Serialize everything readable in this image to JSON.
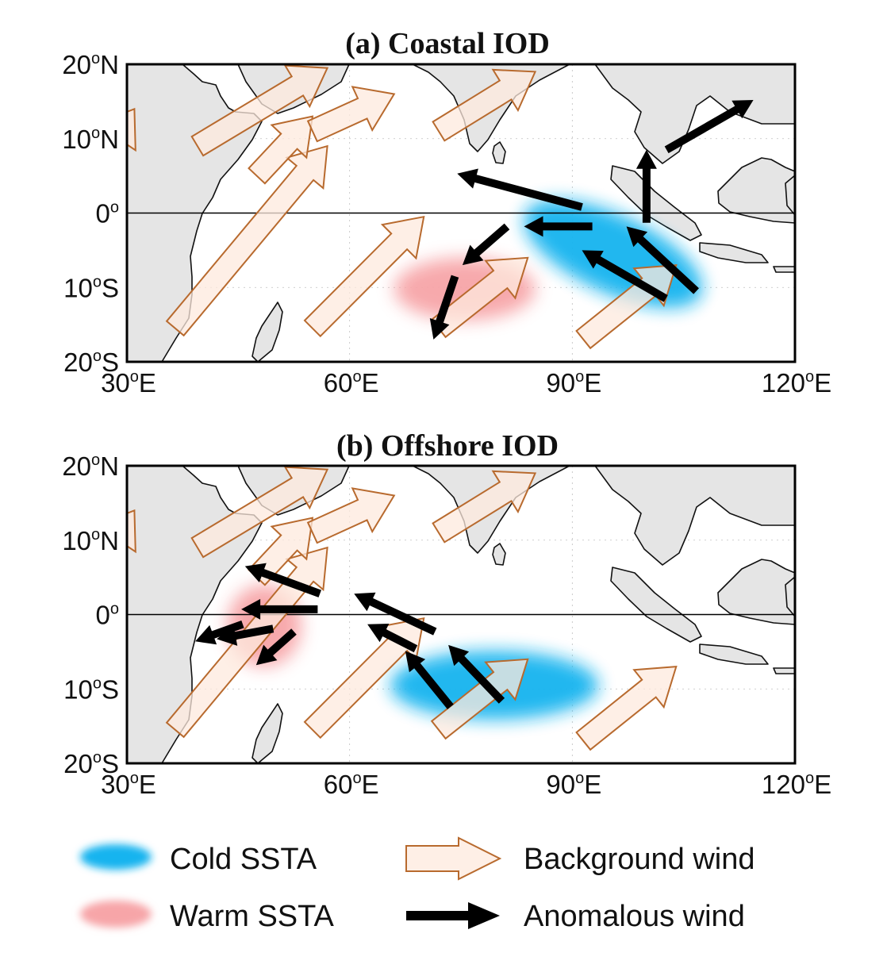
{
  "figure": {
    "panels": [
      {
        "id": "a",
        "title": "(a) Coastal IOD",
        "x_ticks": [
          "30",
          "60",
          "90",
          "120"
        ],
        "x_suffix": "E",
        "y_ticks": [
          {
            "deg": "20",
            "hemi": "N"
          },
          {
            "deg": "10",
            "hemi": "N"
          },
          {
            "deg": "0",
            "hemi": ""
          },
          {
            "deg": "10",
            "hemi": "S"
          },
          {
            "deg": "20",
            "hemi": "S"
          }
        ],
        "cold_ssta": {
          "lon": 95.5,
          "lat": -5.5,
          "rx_deg": 13,
          "ry_deg": 5.2,
          "rot": 25
        },
        "warm_ssta": {
          "lon": 75.5,
          "lat": -10.2,
          "rx_deg": 9.5,
          "ry_deg": 4.2,
          "rot": 0
        },
        "background_wind": [
          {
            "from": [
              36.5,
              -15.5
            ],
            "to": [
              57,
              9
            ]
          },
          {
            "from": [
              39.5,
              9
            ],
            "to": [
              57,
              19.5
            ]
          },
          {
            "from": [
              25,
              5
            ],
            "to": [
              31,
              14
            ]
          },
          {
            "from": [
              47.5,
              5
            ],
            "to": [
              55,
              13
            ]
          },
          {
            "from": [
              55,
              -15.5
            ],
            "to": [
              70,
              -0.5
            ]
          },
          {
            "from": [
              55,
              11
            ],
            "to": [
              66,
              16
            ]
          },
          {
            "from": [
              72,
              11
            ],
            "to": [
              85,
              19
            ]
          },
          {
            "from": [
              72,
              -15.5
            ],
            "to": [
              84,
              -6
            ]
          },
          {
            "from": [
              91.5,
              -17
            ],
            "to": [
              104,
              -7
            ]
          }
        ],
        "anomalous_wind": [
          {
            "from": [
              91.3,
              0.8
            ],
            "to": [
              74.5,
              5.3
            ]
          },
          {
            "from": [
              92.7,
              -1.8
            ],
            "to": [
              83.5,
              -1.8
            ]
          },
          {
            "from": [
              81.2,
              -1.8
            ],
            "to": [
              75.2,
              -7
            ]
          },
          {
            "from": [
              74.2,
              -8.5
            ],
            "to": [
              71.3,
              -17
            ]
          },
          {
            "from": [
              102.6,
              -11.5
            ],
            "to": [
              91.3,
              -5
            ]
          },
          {
            "from": [
              106.7,
              -10.5
            ],
            "to": [
              97.3,
              -1.8
            ]
          },
          {
            "from": [
              100,
              -1.3
            ],
            "to": [
              100,
              8.5
            ]
          },
          {
            "from": [
              102.7,
              8.5
            ],
            "to": [
              114.4,
              15.2
            ]
          }
        ]
      },
      {
        "id": "b",
        "title": "(b) Offshore IOD",
        "x_ticks": [
          "30",
          "60",
          "90",
          "120"
        ],
        "x_suffix": "E",
        "y_ticks": [
          {
            "deg": "20",
            "hemi": "N"
          },
          {
            "deg": "10",
            "hemi": "N"
          },
          {
            "deg": "0",
            "hemi": ""
          },
          {
            "deg": "10",
            "hemi": "S"
          },
          {
            "deg": "20",
            "hemi": "S"
          }
        ],
        "cold_ssta": {
          "lon": 79.5,
          "lat": -9.5,
          "rx_deg": 14,
          "ry_deg": 4.6,
          "rot": 0
        },
        "warm_ssta": {
          "lon": 48.5,
          "lat": -1.5,
          "rx_deg": 5,
          "ry_deg": 5.5,
          "rot": 0
        },
        "background_wind": [
          {
            "from": [
              36.5,
              -15.5
            ],
            "to": [
              57,
              9
            ]
          },
          {
            "from": [
              39.5,
              9
            ],
            "to": [
              57,
              19.5
            ]
          },
          {
            "from": [
              25,
              5
            ],
            "to": [
              31,
              14
            ]
          },
          {
            "from": [
              47.5,
              5
            ],
            "to": [
              55,
              13
            ]
          },
          {
            "from": [
              55,
              -15.5
            ],
            "to": [
              70,
              -0.5
            ]
          },
          {
            "from": [
              55,
              11
            ],
            "to": [
              66,
              16
            ]
          },
          {
            "from": [
              72,
              11
            ],
            "to": [
              85,
              19
            ]
          },
          {
            "from": [
              72,
              -15.5
            ],
            "to": [
              84,
              -6
            ]
          },
          {
            "from": [
              91.5,
              -17
            ],
            "to": [
              104,
              -7
            ]
          }
        ],
        "anomalous_wind": [
          {
            "from": [
              56,
              2.8
            ],
            "to": [
              45.9,
              6.5
            ]
          },
          {
            "from": [
              55.7,
              0.7
            ],
            "to": [
              45.4,
              0.7
            ]
          },
          {
            "from": [
              49.7,
              -1.9
            ],
            "to": [
              42.1,
              -3.3
            ]
          },
          {
            "from": [
              45.6,
              -1.3
            ],
            "to": [
              39.2,
              -3.6
            ]
          },
          {
            "from": [
              52.5,
              -2.3
            ],
            "to": [
              47.4,
              -6.8
            ]
          },
          {
            "from": [
              71.5,
              -2.3
            ],
            "to": [
              60.6,
              2.8
            ]
          },
          {
            "from": [
              68.9,
              -4.6
            ],
            "to": [
              62.4,
              -1.3
            ]
          },
          {
            "from": [
              73.6,
              -12.4
            ],
            "to": [
              67.5,
              -4.9
            ]
          },
          {
            "from": [
              80.5,
              -11.6
            ],
            "to": [
              73.3,
              -4.1
            ]
          }
        ]
      }
    ]
  },
  "legend": {
    "cold": "Cold SSTA",
    "warm": "Warm SSTA",
    "background": "Background wind",
    "anomalous": "Anomalous wind"
  },
  "colors": {
    "cold": "#14b4ef",
    "warm": "#f7a5a8",
    "background_fill": "#fdeade",
    "background_stroke": "#b86a2e",
    "anomalous": "#000000",
    "land": "#e5e5e5"
  }
}
